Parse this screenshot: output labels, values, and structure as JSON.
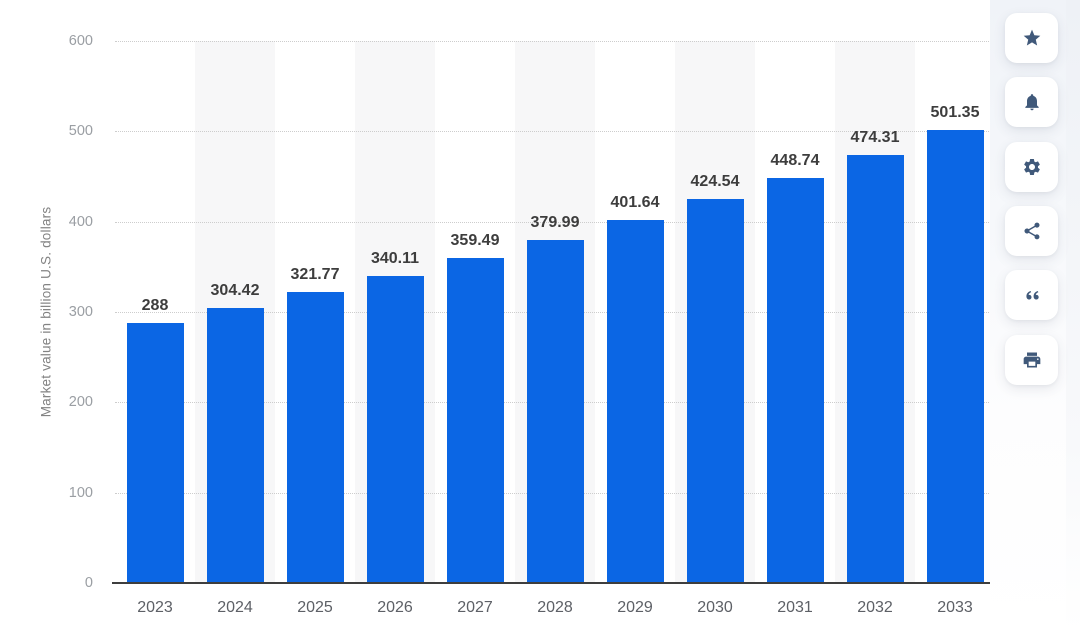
{
  "chart_data": {
    "type": "bar",
    "title": "",
    "xlabel": "",
    "ylabel": "Market value in billion U.S. dollars",
    "categories": [
      "2023",
      "2024",
      "2025",
      "2026",
      "2027",
      "2028",
      "2029",
      "2030",
      "2031",
      "2032",
      "2033"
    ],
    "values": [
      288,
      304.42,
      321.77,
      340.11,
      359.49,
      379.99,
      401.64,
      424.54,
      448.74,
      474.31,
      501.35
    ],
    "value_labels": [
      "288",
      "304.42",
      "321.77",
      "340.11",
      "359.49",
      "379.99",
      "401.64",
      "424.54",
      "448.74",
      "474.31",
      "501.35"
    ],
    "ylim": [
      0,
      600
    ],
    "yticks": [
      0,
      100,
      200,
      300,
      400,
      500,
      600
    ],
    "grid": "horizontal-dotted",
    "legend": "none",
    "bar_color": "#0b66e4",
    "alt_column_band_color": "#f7f7f8",
    "value_label_color": "#3d3d3d",
    "axis_line_color": "#3e3e3e"
  },
  "toolbar": {
    "icon_color": "#40597a",
    "buttons": [
      {
        "id": "favorite",
        "icon": "star-icon"
      },
      {
        "id": "alerts",
        "icon": "bell-icon"
      },
      {
        "id": "settings",
        "icon": "gear-icon"
      },
      {
        "id": "share",
        "icon": "share-icon"
      },
      {
        "id": "cite",
        "icon": "quote-icon"
      },
      {
        "id": "print",
        "icon": "printer-icon"
      }
    ]
  }
}
